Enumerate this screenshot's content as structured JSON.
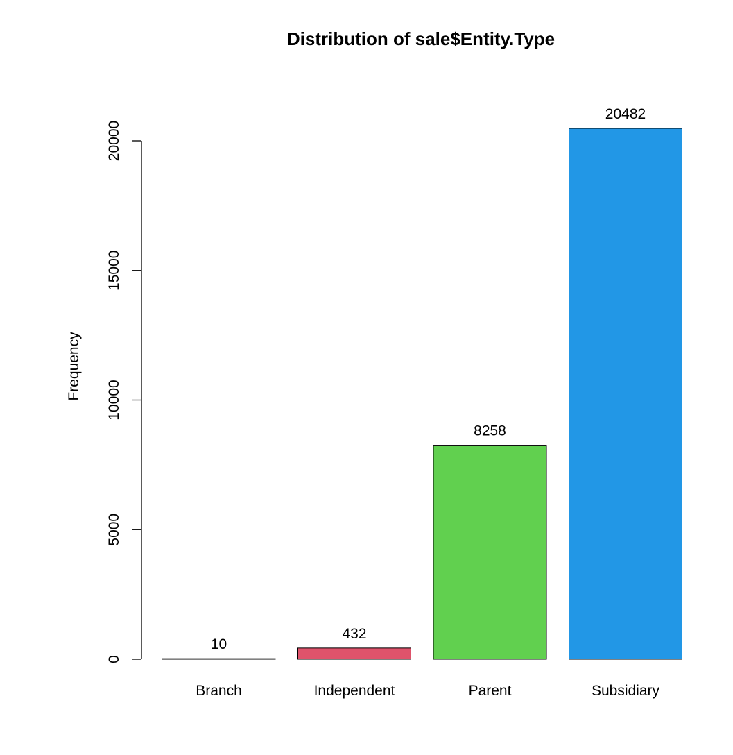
{
  "chart_data": {
    "type": "bar",
    "title": "Distribution of sale$Entity.Type",
    "xlabel": "",
    "ylabel": "Frequency",
    "categories": [
      "Branch",
      "Independent",
      "Parent",
      "Subsidiary"
    ],
    "values": [
      10,
      432,
      8258,
      20482
    ],
    "data_labels": [
      "10",
      "432",
      "8258",
      "20482"
    ],
    "colors": [
      "#000000",
      "#DF536B",
      "#61D04F",
      "#2297E6"
    ],
    "bar_border": "#000000",
    "ylim": [
      0,
      20482
    ],
    "yticks": [
      0,
      5000,
      10000,
      15000,
      20000
    ],
    "ytick_labels": [
      "0",
      "5000",
      "10000",
      "15000",
      "20000"
    ],
    "grid": false,
    "legend": "none"
  }
}
